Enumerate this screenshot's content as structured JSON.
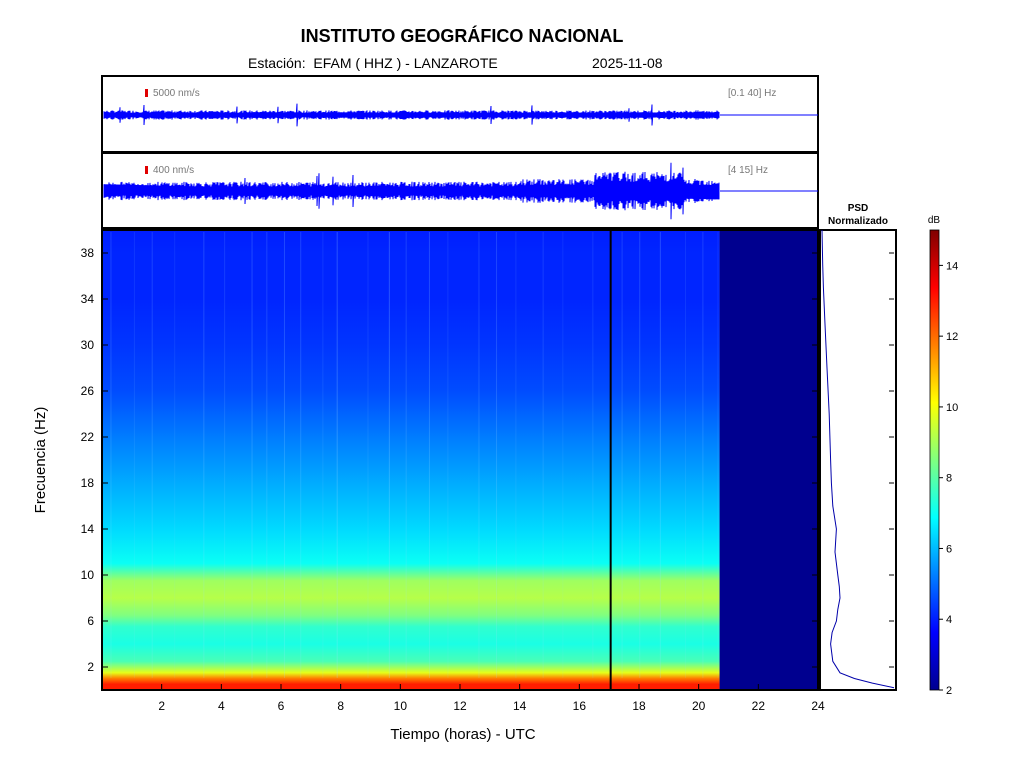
{
  "header": {
    "title": "INSTITUTO GEOGRÁFICO NACIONAL",
    "station_line": "Estación:  EFAM ( HHZ ) - LANZAROTE",
    "date": "2025-11-08"
  },
  "traces": [
    {
      "scale_label": "5000 nm/s",
      "band_label": "[0.1 40] Hz"
    },
    {
      "scale_label": "400 nm/s",
      "band_label": "[4 15] Hz"
    }
  ],
  "psd_panel": {
    "title_line1": "PSD",
    "title_line2": "Normalizado"
  },
  "colorbar": {
    "unit": "dB",
    "min": 2,
    "max": 15,
    "ticks": [
      2,
      4,
      6,
      8,
      10,
      12,
      14
    ]
  },
  "chart_data": {
    "type": "heatmap",
    "xlabel": "Tiempo (horas) - UTC",
    "ylabel": "Frecuencia  (Hz)",
    "xlim": [
      0,
      24
    ],
    "ylim": [
      0,
      40
    ],
    "x_ticks": [
      2,
      4,
      6,
      8,
      10,
      12,
      14,
      16,
      18,
      20,
      22,
      24
    ],
    "y_ticks": [
      2,
      6,
      10,
      14,
      18,
      22,
      26,
      30,
      34,
      38
    ],
    "data_end_hour": 20.7,
    "gap_line_hour": 17.05,
    "spectrogram_rows": [
      {
        "freq": 0.5,
        "db": 13.0
      },
      {
        "freq": 1.0,
        "db": 11.8
      },
      {
        "freq": 1.5,
        "db": 9.8
      },
      {
        "freq": 2.5,
        "db": 7.8
      },
      {
        "freq": 4.0,
        "db": 7.2
      },
      {
        "freq": 5.5,
        "db": 7.5
      },
      {
        "freq": 6.5,
        "db": 8.5
      },
      {
        "freq": 8.0,
        "db": 9.2
      },
      {
        "freq": 9.5,
        "db": 8.9
      },
      {
        "freq": 11.0,
        "db": 7.0
      },
      {
        "freq": 14.0,
        "db": 6.4
      },
      {
        "freq": 18.0,
        "db": 5.8
      },
      {
        "freq": 22.0,
        "db": 5.2
      },
      {
        "freq": 26.0,
        "db": 4.6
      },
      {
        "freq": 30.0,
        "db": 4.3
      },
      {
        "freq": 34.0,
        "db": 4.1
      },
      {
        "freq": 38.0,
        "db": 4.1
      },
      {
        "freq": 40.0,
        "db": 4.0
      }
    ],
    "psd_curve": [
      {
        "freq": 0.2,
        "psd": 1.0
      },
      {
        "freq": 0.6,
        "psd": 0.7
      },
      {
        "freq": 1.0,
        "psd": 0.45
      },
      {
        "freq": 1.5,
        "psd": 0.25
      },
      {
        "freq": 2.5,
        "psd": 0.15
      },
      {
        "freq": 4.0,
        "psd": 0.12
      },
      {
        "freq": 5.0,
        "psd": 0.14
      },
      {
        "freq": 6.0,
        "psd": 0.2
      },
      {
        "freq": 7.0,
        "psd": 0.22
      },
      {
        "freq": 8.0,
        "psd": 0.25
      },
      {
        "freq": 9.0,
        "psd": 0.24
      },
      {
        "freq": 10.0,
        "psd": 0.22
      },
      {
        "freq": 12.0,
        "psd": 0.18
      },
      {
        "freq": 14.0,
        "psd": 0.2
      },
      {
        "freq": 16.0,
        "psd": 0.15
      },
      {
        "freq": 18.0,
        "psd": 0.13
      },
      {
        "freq": 20.0,
        "psd": 0.12
      },
      {
        "freq": 24.0,
        "psd": 0.1
      },
      {
        "freq": 28.0,
        "psd": 0.07
      },
      {
        "freq": 32.0,
        "psd": 0.04
      },
      {
        "freq": 35.0,
        "psd": 0.02
      },
      {
        "freq": 37.0,
        "psd": 0.01
      },
      {
        "freq": 40.0,
        "psd": 0.0
      }
    ]
  }
}
